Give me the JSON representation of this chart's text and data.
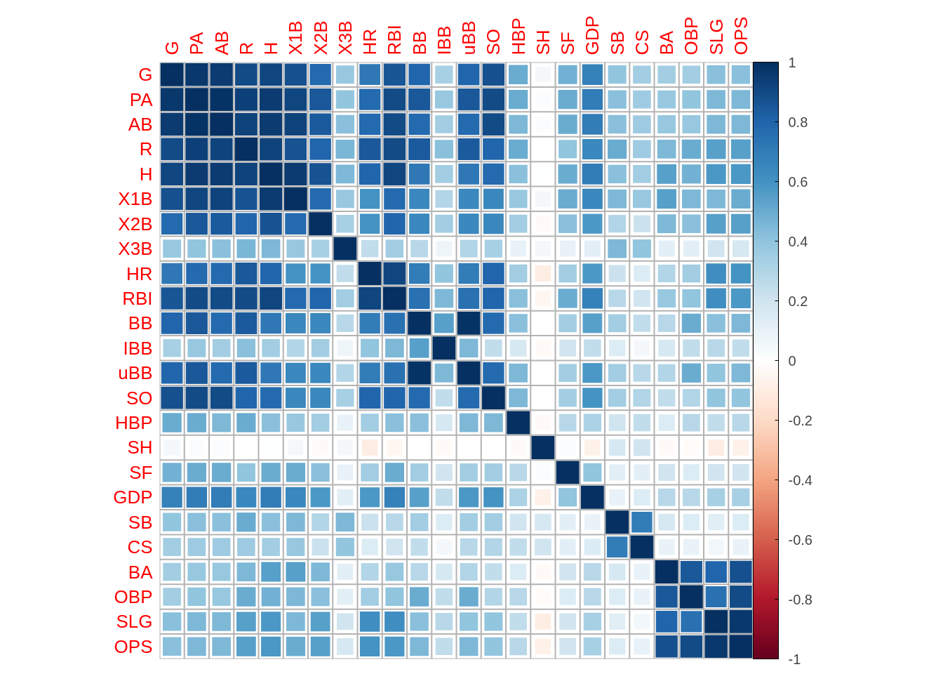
{
  "chart_data": {
    "type": "heatmap",
    "categories": [
      "G",
      "PA",
      "AB",
      "R",
      "H",
      "X1B",
      "X2B",
      "X3B",
      "HR",
      "RBI",
      "BB",
      "IBB",
      "uBB",
      "SO",
      "HBP",
      "SH",
      "SF",
      "GDP",
      "SB",
      "CS",
      "BA",
      "OBP",
      "SLG",
      "OPS"
    ],
    "y_categories": [
      "G",
      "PA",
      "AB",
      "R",
      "H",
      "X1B",
      "X2B",
      "X3B",
      "HR",
      "RBI",
      "BB",
      "IBB",
      "uBB",
      "SO",
      "HBP",
      "SH",
      "SF",
      "GDP",
      "SB",
      "CS",
      "BA",
      "OBP",
      "SLG",
      "OPS"
    ],
    "cells": [
      [
        1,
        0.97,
        0.96,
        0.9,
        0.92,
        0.88,
        0.78,
        0.38,
        0.72,
        0.86,
        0.8,
        0.33,
        0.8,
        0.88,
        0.5,
        0.05,
        0.48,
        0.68,
        0.4,
        0.35,
        0.35,
        0.35,
        0.42,
        0.42
      ],
      [
        0.97,
        1,
        0.99,
        0.94,
        0.96,
        0.92,
        0.85,
        0.4,
        0.78,
        0.9,
        0.85,
        0.38,
        0.85,
        0.9,
        0.5,
        0.02,
        0.5,
        0.7,
        0.42,
        0.36,
        0.38,
        0.4,
        0.45,
        0.45
      ],
      [
        0.96,
        0.99,
        1,
        0.93,
        0.96,
        0.93,
        0.84,
        0.42,
        0.78,
        0.9,
        0.78,
        0.35,
        0.78,
        0.9,
        0.45,
        0.02,
        0.5,
        0.7,
        0.42,
        0.36,
        0.38,
        0.38,
        0.45,
        0.45
      ],
      [
        0.9,
        0.94,
        0.93,
        1,
        0.93,
        0.87,
        0.8,
        0.46,
        0.85,
        0.9,
        0.84,
        0.42,
        0.84,
        0.8,
        0.5,
        0,
        0.4,
        0.65,
        0.5,
        0.36,
        0.45,
        0.5,
        0.55,
        0.55
      ],
      [
        0.92,
        0.96,
        0.96,
        0.93,
        1,
        0.96,
        0.87,
        0.45,
        0.8,
        0.92,
        0.72,
        0.35,
        0.72,
        0.78,
        0.42,
        0.01,
        0.5,
        0.7,
        0.42,
        0.35,
        0.55,
        0.48,
        0.58,
        0.58
      ],
      [
        0.88,
        0.92,
        0.93,
        0.87,
        0.96,
        1,
        0.78,
        0.38,
        0.6,
        0.78,
        0.65,
        0.3,
        0.65,
        0.65,
        0.38,
        0.05,
        0.5,
        0.65,
        0.45,
        0.38,
        0.55,
        0.45,
        0.45,
        0.5
      ],
      [
        0.78,
        0.85,
        0.84,
        0.8,
        0.87,
        0.78,
        1,
        0.33,
        0.6,
        0.8,
        0.65,
        0.35,
        0.65,
        0.65,
        0.35,
        -0.03,
        0.42,
        0.58,
        0.3,
        0.22,
        0.45,
        0.42,
        0.55,
        0.55
      ],
      [
        0.38,
        0.4,
        0.42,
        0.46,
        0.45,
        0.38,
        0.33,
        1,
        0.25,
        0.35,
        0.28,
        0.08,
        0.3,
        0.33,
        0.1,
        0.05,
        0.1,
        0.12,
        0.45,
        0.4,
        0.12,
        0.12,
        0.2,
        0.18
      ],
      [
        0.72,
        0.78,
        0.78,
        0.85,
        0.8,
        0.6,
        0.6,
        0.25,
        1,
        0.92,
        0.7,
        0.4,
        0.7,
        0.8,
        0.35,
        -0.1,
        0.35,
        0.58,
        0.22,
        0.15,
        0.3,
        0.35,
        0.62,
        0.6
      ],
      [
        0.86,
        0.9,
        0.9,
        0.9,
        0.92,
        0.78,
        0.8,
        0.35,
        0.92,
        1,
        0.75,
        0.45,
        0.75,
        0.8,
        0.42,
        -0.05,
        0.5,
        0.68,
        0.28,
        0.2,
        0.38,
        0.4,
        0.62,
        0.58
      ],
      [
        0.8,
        0.85,
        0.78,
        0.84,
        0.72,
        0.65,
        0.65,
        0.28,
        0.7,
        0.75,
        1,
        0.55,
        0.99,
        0.78,
        0.42,
        0,
        0.35,
        0.55,
        0.35,
        0.25,
        0.28,
        0.5,
        0.42,
        0.45
      ],
      [
        0.33,
        0.38,
        0.35,
        0.42,
        0.35,
        0.3,
        0.35,
        0.08,
        0.4,
        0.45,
        0.55,
        1,
        0.45,
        0.25,
        0.18,
        -0.03,
        0.2,
        0.25,
        0.15,
        0.05,
        0.18,
        0.25,
        0.28,
        0.25
      ],
      [
        0.8,
        0.85,
        0.78,
        0.84,
        0.72,
        0.65,
        0.65,
        0.3,
        0.7,
        0.75,
        0.99,
        0.45,
        1,
        0.78,
        0.45,
        0,
        0.35,
        0.58,
        0.35,
        0.28,
        0.3,
        0.5,
        0.4,
        0.45
      ],
      [
        0.88,
        0.9,
        0.9,
        0.8,
        0.78,
        0.65,
        0.65,
        0.33,
        0.8,
        0.8,
        0.78,
        0.25,
        0.78,
        1,
        0.45,
        0,
        0.35,
        0.6,
        0.35,
        0.3,
        0.25,
        0.3,
        0.4,
        0.4
      ],
      [
        0.5,
        0.5,
        0.45,
        0.5,
        0.42,
        0.38,
        0.35,
        0.1,
        0.35,
        0.42,
        0.42,
        0.18,
        0.45,
        0.45,
        1,
        -0.03,
        0.28,
        0.32,
        0.2,
        0.25,
        0.15,
        0.28,
        0.25,
        0.28
      ],
      [
        0.05,
        0.02,
        0.02,
        0,
        0.01,
        0.05,
        -0.03,
        0.05,
        -0.1,
        -0.05,
        0,
        -0.03,
        0,
        0,
        -0.03,
        1,
        0.02,
        -0.08,
        0.18,
        0.2,
        -0.03,
        -0.02,
        -0.1,
        -0.08
      ],
      [
        0.48,
        0.5,
        0.5,
        0.4,
        0.5,
        0.5,
        0.42,
        0.1,
        0.35,
        0.5,
        0.35,
        0.2,
        0.35,
        0.35,
        0.28,
        0.02,
        1,
        0.4,
        0.12,
        0.12,
        0.2,
        0.15,
        0.2,
        0.2
      ],
      [
        0.68,
        0.7,
        0.7,
        0.65,
        0.7,
        0.65,
        0.58,
        0.12,
        0.58,
        0.68,
        0.55,
        0.25,
        0.58,
        0.6,
        0.32,
        -0.08,
        0.4,
        1,
        0.1,
        0.15,
        0.28,
        0.28,
        0.33,
        0.33
      ],
      [
        0.4,
        0.42,
        0.42,
        0.5,
        0.42,
        0.45,
        0.3,
        0.45,
        0.22,
        0.28,
        0.35,
        0.15,
        0.35,
        0.35,
        0.2,
        0.18,
        0.12,
        0.1,
        1,
        0.7,
        0.18,
        0.15,
        0.13,
        0.15
      ],
      [
        0.35,
        0.36,
        0.36,
        0.36,
        0.35,
        0.38,
        0.22,
        0.4,
        0.15,
        0.2,
        0.25,
        0.05,
        0.28,
        0.3,
        0.25,
        0.2,
        0.12,
        0.15,
        0.7,
        1,
        0.1,
        0.1,
        0.06,
        0.1
      ],
      [
        0.35,
        0.38,
        0.38,
        0.45,
        0.55,
        0.55,
        0.45,
        0.12,
        0.3,
        0.38,
        0.28,
        0.18,
        0.3,
        0.25,
        0.15,
        -0.03,
        0.2,
        0.28,
        0.18,
        0.1,
        1,
        0.85,
        0.8,
        0.88
      ],
      [
        0.35,
        0.4,
        0.38,
        0.5,
        0.48,
        0.45,
        0.42,
        0.12,
        0.35,
        0.4,
        0.5,
        0.25,
        0.5,
        0.3,
        0.28,
        -0.02,
        0.15,
        0.28,
        0.15,
        0.1,
        0.85,
        1,
        0.75,
        0.9
      ],
      [
        0.42,
        0.45,
        0.45,
        0.55,
        0.58,
        0.45,
        0.55,
        0.2,
        0.62,
        0.62,
        0.42,
        0.28,
        0.4,
        0.4,
        0.25,
        -0.1,
        0.2,
        0.33,
        0.13,
        0.06,
        0.8,
        0.75,
        1,
        0.97
      ],
      [
        0.42,
        0.45,
        0.45,
        0.55,
        0.58,
        0.5,
        0.55,
        0.18,
        0.6,
        0.58,
        0.45,
        0.25,
        0.45,
        0.4,
        0.28,
        -0.08,
        0.2,
        0.33,
        0.15,
        0.1,
        0.88,
        0.9,
        0.97,
        1
      ]
    ],
    "clim": [
      -1,
      1
    ],
    "cticks": [
      -1,
      -0.8,
      -0.6,
      -0.4,
      -0.2,
      0,
      0.2,
      0.4,
      0.6,
      0.8,
      1
    ]
  }
}
